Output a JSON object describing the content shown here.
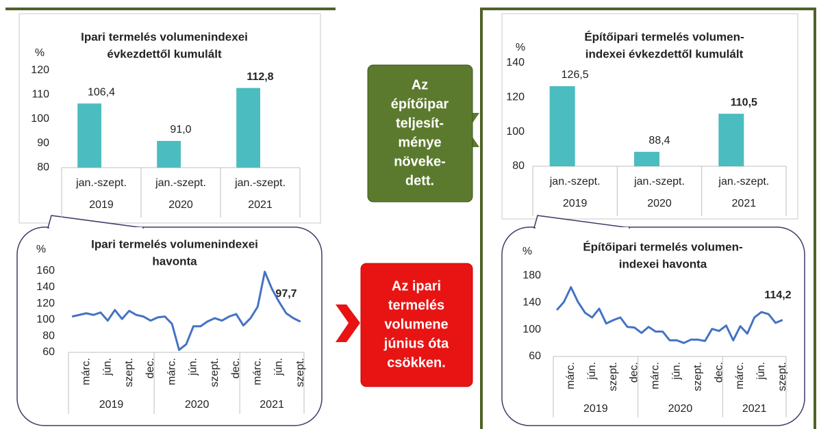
{
  "chart_data": [
    {
      "type": "bar",
      "title": [
        "Ipari termelés volumenindexei",
        "évkezdettől kumulált"
      ],
      "y_label": "%",
      "categories": [
        "jan.-szept.",
        "jan.-szept.",
        "jan.-szept."
      ],
      "groups": [
        "2019",
        "2020",
        "2021"
      ],
      "values": [
        106.4,
        91.0,
        112.8
      ],
      "value_labels": [
        "106,4",
        "91,0",
        "112,8"
      ],
      "color": "#4bbcc0",
      "ylim": [
        80,
        120
      ],
      "yticks": [
        80,
        90,
        100,
        110,
        120
      ]
    },
    {
      "type": "line",
      "title": [
        "Ipari termelés volumenindexei",
        "havonta"
      ],
      "y_label": "%",
      "categories": [
        null,
        null,
        "márc.",
        null,
        null,
        "jún.",
        null,
        null,
        "szept.",
        null,
        null,
        "dec.",
        null,
        null,
        "márc.",
        null,
        null,
        "jún.",
        null,
        null,
        "szept.",
        null,
        null,
        "dec.",
        null,
        null,
        "márc.",
        null,
        null,
        "jún.",
        null,
        null,
        "szept."
      ],
      "groups": [
        "2019",
        "2020",
        "2021"
      ],
      "values": [
        104,
        106,
        108,
        106,
        109,
        99,
        112,
        101,
        111,
        106,
        104,
        99,
        103,
        104,
        95,
        63,
        70,
        92,
        92,
        98,
        102,
        99,
        104,
        107,
        93,
        102,
        116,
        159,
        138,
        122,
        108,
        102,
        97.7
      ],
      "value_labels": [
        null,
        null,
        null,
        null,
        null,
        null,
        null,
        null,
        null,
        null,
        null,
        null,
        null,
        null,
        null,
        null,
        null,
        null,
        null,
        null,
        null,
        null,
        null,
        null,
        null,
        null,
        null,
        null,
        null,
        null,
        null,
        null,
        "97,7"
      ],
      "color": "#4472c4",
      "ylim": [
        60,
        160
      ],
      "yticks": [
        60,
        80,
        100,
        120,
        140,
        160
      ]
    },
    {
      "type": "bar",
      "title": [
        "Építőipari termelés volumen-",
        "indexei évkezdettől kumulált"
      ],
      "y_label": "%",
      "categories": [
        "jan.-szept.",
        "jan.-szept.",
        "jan.-szept."
      ],
      "groups": [
        "2019",
        "2020",
        "2021"
      ],
      "values": [
        126.5,
        88.4,
        110.5
      ],
      "value_labels": [
        "126,5",
        "88,4",
        "110,5"
      ],
      "color": "#4bbcc0",
      "ylim": [
        80,
        140
      ],
      "yticks": [
        80,
        100,
        120,
        140
      ]
    },
    {
      "type": "line",
      "title": [
        "Építőipari termelés volumen-",
        "indexei havonta"
      ],
      "y_label": "%",
      "categories": [
        null,
        null,
        "márc.",
        null,
        null,
        "jún.",
        null,
        null,
        "szept.",
        null,
        null,
        "dec.",
        null,
        null,
        "márc.",
        null,
        null,
        "jún.",
        null,
        null,
        "szept.",
        null,
        null,
        "dec.",
        null,
        null,
        "márc.",
        null,
        null,
        "jún.",
        null,
        null,
        "szept."
      ],
      "groups": [
        "2019",
        "2020",
        "2021"
      ],
      "values": [
        129,
        141,
        163,
        141,
        125,
        118,
        131,
        109,
        114,
        118,
        104,
        103,
        95,
        104,
        97,
        97,
        84,
        84,
        80,
        85,
        85,
        83,
        101,
        98,
        106,
        84,
        105,
        94,
        118,
        126,
        123,
        110,
        114.2
      ],
      "value_labels": [
        null,
        null,
        null,
        null,
        null,
        null,
        null,
        null,
        null,
        null,
        null,
        null,
        null,
        null,
        null,
        null,
        null,
        null,
        null,
        null,
        null,
        null,
        null,
        null,
        null,
        null,
        null,
        null,
        null,
        null,
        null,
        null,
        "114,2"
      ],
      "color": "#4472c4",
      "ylim": [
        60,
        180
      ],
      "yticks": [
        60,
        100,
        140,
        180
      ]
    }
  ],
  "callouts": [
    {
      "lines": [
        "Az",
        "építőipar",
        "teljesít-",
        "ménye",
        "növeke-",
        "dett."
      ],
      "color": "#5b7a2d"
    },
    {
      "lines": [
        "Az ipari",
        "termelés",
        "volumene",
        "június óta",
        "csökken."
      ],
      "color": "#e81414"
    }
  ]
}
